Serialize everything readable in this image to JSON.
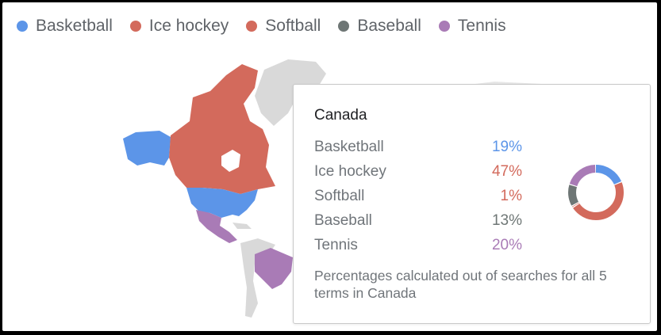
{
  "legend": {
    "items": [
      {
        "label": "Basketball",
        "color": "#5c95e8"
      },
      {
        "label": "Ice hockey",
        "color": "#d36a5c"
      },
      {
        "label": "Softball",
        "color": "#d36a5c"
      },
      {
        "label": "Baseball",
        "color": "#6e7675"
      },
      {
        "label": "Tennis",
        "color": "#a97bb6"
      }
    ]
  },
  "map": {
    "regions": [
      {
        "name": "Canada",
        "top_term": "Ice hockey",
        "color": "#d36a5c"
      },
      {
        "name": "Alaska",
        "top_term": "Basketball",
        "color": "#5c95e8"
      },
      {
        "name": "United States",
        "top_term": "Basketball",
        "color": "#5c95e8"
      },
      {
        "name": "Mexico",
        "top_term": "Tennis",
        "color": "#a97bb6"
      },
      {
        "name": "Brazil",
        "top_term": "Tennis",
        "color": "#a97bb6"
      }
    ],
    "no_data_color": "#d9d9d9"
  },
  "tooltip": {
    "title": "Canada",
    "rows": [
      {
        "label": "Basketball",
        "value": "19%",
        "percent": 19,
        "color": "#5c95e8"
      },
      {
        "label": "Ice hockey",
        "value": "47%",
        "percent": 47,
        "color": "#d36a5c"
      },
      {
        "label": "Softball",
        "value": "1%",
        "percent": 1,
        "color": "#d36a5c"
      },
      {
        "label": "Baseball",
        "value": "13%",
        "percent": 13,
        "color": "#6e7675"
      },
      {
        "label": "Tennis",
        "value": "20%",
        "percent": 20,
        "color": "#a97bb6"
      }
    ],
    "note": "Percentages calculated out of searches for all 5 terms in Canada"
  }
}
